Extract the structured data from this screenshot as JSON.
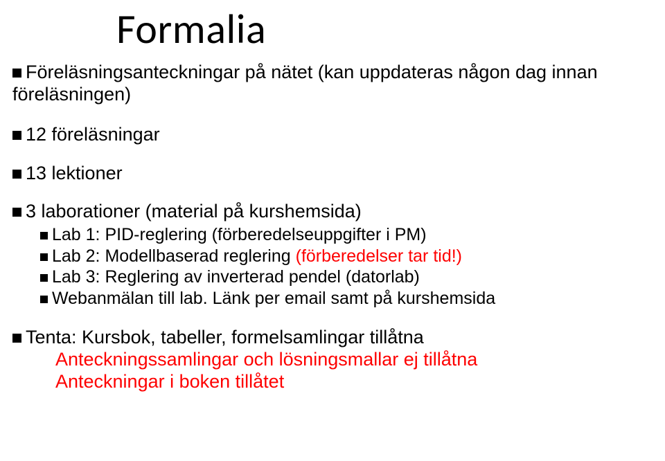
{
  "colors": {
    "text": "#000000",
    "accent_red": "#fe0000",
    "background": "#ffffff",
    "bullet": "#000000"
  },
  "typography": {
    "title_font": "Calibri",
    "body_font": "Arial",
    "title_size_pt": 44,
    "body_size_pt": 20,
    "sub_size_pt": 18
  },
  "title": "Formalia",
  "items": {
    "i1_l1": "Föreläsningsanteckningar på nätet (kan uppdateras någon dag innan",
    "i1_l2": "föreläsningen)",
    "i2": "12 föreläsningar",
    "i3": "13 lektioner",
    "i4": "3 laborationer (material på kurshemsida)",
    "i4_sub": {
      "s1": "Lab 1: PID-reglering (förberedelseuppgifter i PM)",
      "s2_a": "Lab 2: Modellbaserad reglering ",
      "s2_b": "(förberedelser tar tid!)",
      "s3": "Lab 3: Reglering av inverterad pendel (datorlab)",
      "s4": "Webanmälan till lab. Länk per email samt på  kurshemsida"
    },
    "i5": "Tenta: Kursbok, tabeller, formelsamlingar tillåtna",
    "i5_red1": "Anteckningssamlingar och lösningsmallar ej tillåtna",
    "i5_red2": "Anteckningar i boken tillåtet"
  }
}
